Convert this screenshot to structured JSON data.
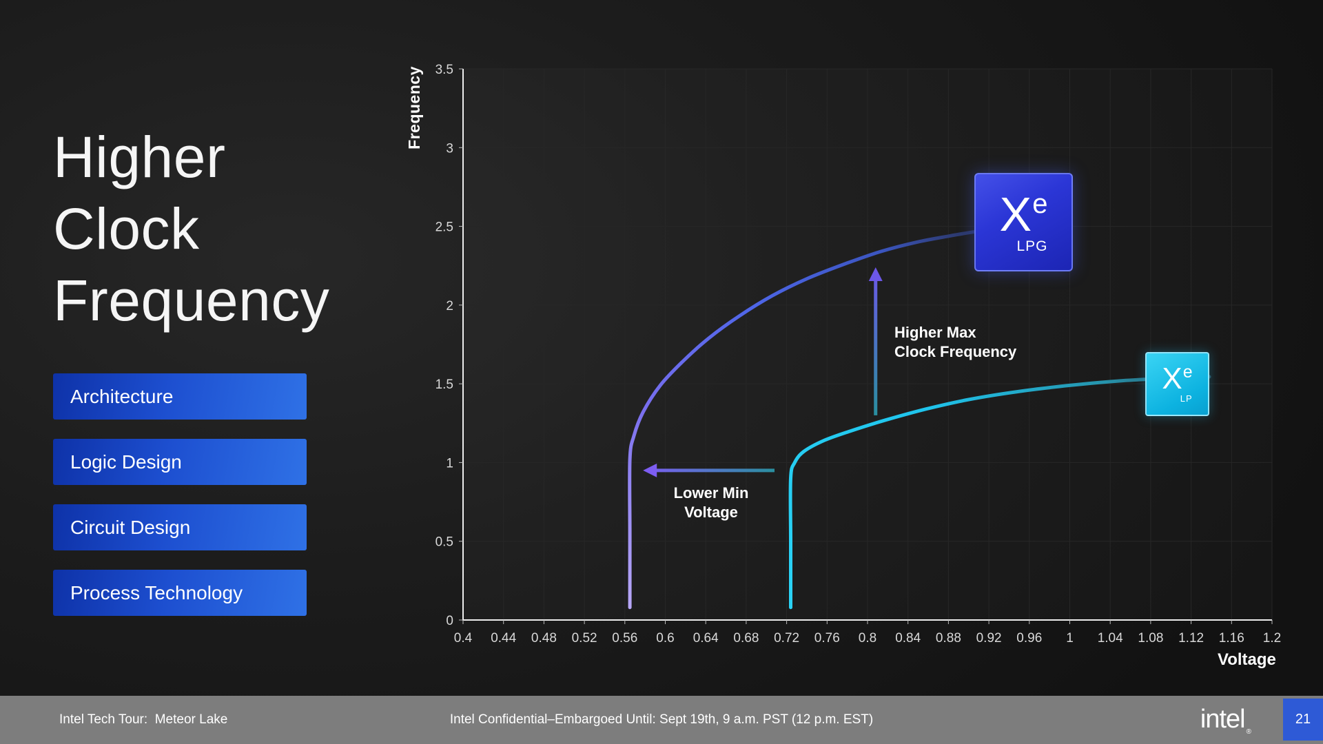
{
  "slide": {
    "title_lines": [
      "Higher",
      "Clock",
      "Frequency"
    ],
    "nav_chips": [
      "Architecture",
      "Logic Design",
      "Circuit Design",
      "Process Technology"
    ]
  },
  "chart_data": {
    "type": "line",
    "title": "",
    "xlabel": "Voltage",
    "ylabel": "Frequency",
    "xlim": [
      0.4,
      1.2
    ],
    "ylim": [
      0,
      3.5
    ],
    "grid": true,
    "x_tick_labels": [
      "0.4",
      "0.44",
      "0.48",
      "0.52",
      "0.56",
      "0.6",
      "0.64",
      "0.68",
      "0.72",
      "0.76",
      "0.8",
      "0.84",
      "0.88",
      "0.92",
      "0.96",
      "1",
      "1.04",
      "1.08",
      "1.12",
      "1.16",
      "1.2"
    ],
    "y_tick_labels": [
      "0",
      "0.5",
      "1",
      "1.5",
      "2",
      "2.5",
      "3",
      "3.5"
    ],
    "series": [
      {
        "name": "Xe LPG",
        "points": [
          [
            0.565,
            0.08
          ],
          [
            0.565,
            0.55
          ],
          [
            0.565,
            1.02
          ],
          [
            0.569,
            1.17
          ],
          [
            0.578,
            1.32
          ],
          [
            0.595,
            1.49
          ],
          [
            0.617,
            1.64
          ],
          [
            0.643,
            1.79
          ],
          [
            0.673,
            1.93
          ],
          [
            0.706,
            2.06
          ],
          [
            0.741,
            2.17
          ],
          [
            0.777,
            2.26
          ],
          [
            0.813,
            2.34
          ],
          [
            0.849,
            2.4
          ],
          [
            0.882,
            2.44
          ],
          [
            0.905,
            2.465
          ]
        ],
        "stops": [
          {
            "o": 0,
            "c": "#b7a7f7"
          },
          {
            "o": 0.3,
            "c": "#7a6fee"
          },
          {
            "o": 0.6,
            "c": "#4e66e8"
          },
          {
            "o": 0.85,
            "c": "#3b55bf"
          },
          {
            "o": 1,
            "c": "#2a3560"
          }
        ]
      },
      {
        "name": "Xe LP",
        "points": [
          [
            0.724,
            0.08
          ],
          [
            0.724,
            0.5
          ],
          [
            0.724,
            0.9
          ],
          [
            0.728,
            1.0
          ],
          [
            0.737,
            1.07
          ],
          [
            0.757,
            1.14
          ],
          [
            0.783,
            1.2
          ],
          [
            0.818,
            1.27
          ],
          [
            0.858,
            1.34
          ],
          [
            0.9,
            1.4
          ],
          [
            0.948,
            1.45
          ],
          [
            1.0,
            1.49
          ],
          [
            1.052,
            1.52
          ],
          [
            1.1,
            1.535
          ],
          [
            1.138,
            1.545
          ]
        ],
        "stops": [
          {
            "o": 0,
            "c": "#2ad2f5"
          },
          {
            "o": 0.45,
            "c": "#1fc4ec"
          },
          {
            "o": 0.8,
            "c": "#2694ad"
          },
          {
            "o": 1,
            "c": "#2c4f5c"
          }
        ]
      }
    ],
    "arrows": [
      {
        "dir": "up",
        "x": 0.808,
        "from": 1.3,
        "to": 2.24,
        "color_from": "#2a8f9f",
        "color_to": "#6c57e8",
        "label": "Higher Max Clock Frequency"
      },
      {
        "dir": "left",
        "y": 0.95,
        "from": 0.708,
        "to": 0.578,
        "color_from": "#2a8f9f",
        "color_to": "#7d5df2",
        "label": "Lower Min Voltage"
      }
    ]
  },
  "annotations": {
    "higher_max": {
      "line1": "Higher Max",
      "line2": "Clock Frequency"
    },
    "lower_min": {
      "line1": "Lower Min",
      "line2": "Voltage"
    }
  },
  "badges": {
    "lpg": {
      "main": "X",
      "sup": "e",
      "sub": "LPG"
    },
    "lp": {
      "main": "X",
      "sup": "e",
      "sub": "LP"
    }
  },
  "footer": {
    "left": "Intel Tech Tour:  Meteor Lake",
    "center": "Intel Confidential–Embargoed Until: Sept 19th, 9 a.m. PST (12 p.m. EST)",
    "brand": "intel",
    "reg": "®",
    "page": "21"
  }
}
